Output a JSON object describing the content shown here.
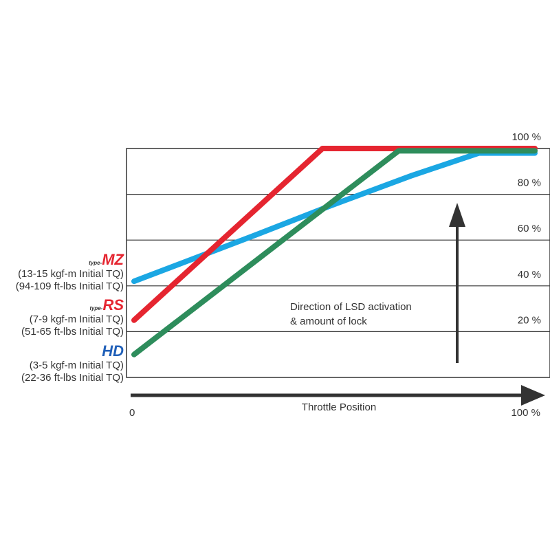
{
  "chart_data": {
    "type": "line",
    "title": "",
    "xlabel": "Throttle Position",
    "ylabel": "",
    "x_ticks": [
      "0",
      "100 %"
    ],
    "y_ticks": [
      "20 %",
      "40 %",
      "60 %",
      "80 %",
      "100 %"
    ],
    "xlim": [
      0,
      100
    ],
    "ylim": [
      0,
      100
    ],
    "grid": "horizontal",
    "annotation": [
      "Direction of LSD activation",
      "& amount of lock"
    ],
    "series": [
      {
        "name": "type-MZ",
        "color": "#1ba7e3",
        "x": [
          0,
          15,
          30,
          49,
          69,
          86,
          100
        ],
        "y": [
          42,
          52,
          62,
          75,
          88,
          98,
          98
        ]
      },
      {
        "name": "type-RS",
        "color": "#e52530",
        "x": [
          0,
          47,
          100
        ],
        "y": [
          25,
          100,
          100
        ]
      },
      {
        "name": "HD",
        "color": "#2e8d5c",
        "x": [
          0,
          66,
          100
        ],
        "y": [
          10,
          99,
          99
        ]
      }
    ],
    "legend": [
      {
        "logo_prefix": "type-",
        "logo": "MZ",
        "color": "#e52530",
        "lines": [
          "(13-15 kgf-m Initial TQ)",
          "(94-109 ft-lbs Initial TQ)"
        ]
      },
      {
        "logo_prefix": "type-",
        "logo": "RS",
        "color": "#e52530",
        "lines": [
          "(7-9 kgf-m Initial TQ)",
          "(51-65 ft-lbs Initial TQ)"
        ]
      },
      {
        "logo_prefix": "",
        "logo": "HD",
        "color": "#1f5fb8",
        "lines": [
          "(3-5 kgf-m Initial TQ)",
          "(22-36 ft-lbs Initial TQ)"
        ]
      }
    ]
  }
}
